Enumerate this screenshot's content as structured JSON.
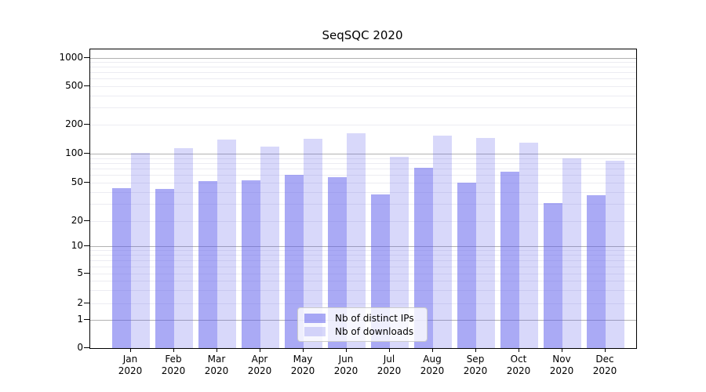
{
  "title": "SeqSQC 2020",
  "colors": {
    "distinct_ips_fill": "rgba(85,85,235,0.50)",
    "downloads_fill": "rgba(85,85,235,0.23)",
    "distinct_ips_hex": "#a8a8f0",
    "downloads_hex": "#d8d8f6",
    "grid_major": "#b2b2b2",
    "grid_minor": "#ececf2",
    "spine": "#000000",
    "legend_border": "#cccccc",
    "legend_background": "rgba(255,255,255,0.8)",
    "text": "#000000"
  },
  "chart_data": {
    "type": "bar",
    "title": "SeqSQC 2020",
    "categories": [
      "Jan",
      "Feb",
      "Mar",
      "Apr",
      "May",
      "Jun",
      "Jul",
      "Aug",
      "Sep",
      "Oct",
      "Nov",
      "Dec"
    ],
    "category_year": "2020",
    "series": [
      {
        "name": "Nb of distinct IPs",
        "key": "distinct_ips",
        "values": [
          44,
          43,
          52,
          53,
          60,
          57,
          38,
          71,
          50,
          65,
          31,
          37
        ]
      },
      {
        "name": "Nb of downloads",
        "key": "downloads",
        "values": [
          102,
          114,
          141,
          118,
          143,
          163,
          93,
          155,
          146,
          130,
          90,
          85
        ]
      }
    ],
    "y_axis": {
      "scale": "symlog",
      "tick_labels": [
        "1000",
        "500",
        "200",
        "100",
        "50",
        "20",
        "10",
        "5",
        "2",
        "1",
        "0"
      ],
      "tick_values": [
        1000,
        500,
        200,
        100,
        50,
        20,
        10,
        5,
        2,
        1,
        0
      ],
      "range": [
        0,
        1000
      ]
    },
    "grid": {
      "major_values": [
        1,
        10,
        100,
        1000
      ],
      "minor_values": [
        2,
        3,
        4,
        5,
        6,
        7,
        8,
        9,
        20,
        30,
        40,
        50,
        60,
        70,
        80,
        90,
        200,
        300,
        400,
        500,
        600,
        700,
        800,
        900
      ]
    },
    "legend": {
      "position": "lower center",
      "items": [
        "Nb of distinct IPs",
        "Nb of downloads"
      ]
    }
  }
}
